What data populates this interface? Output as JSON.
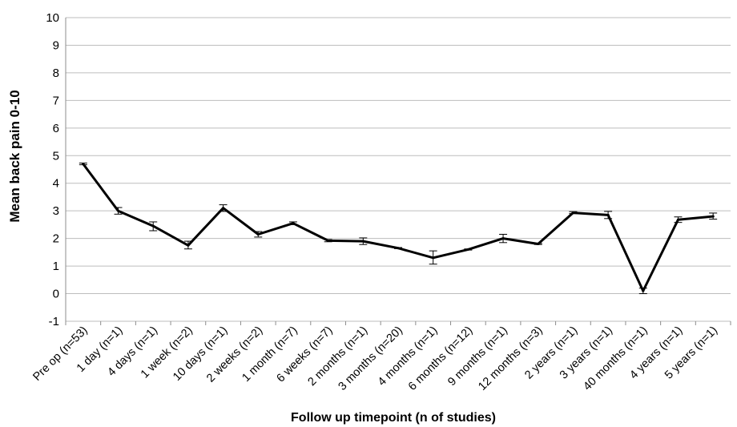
{
  "chart_data": {
    "type": "line",
    "title": "",
    "xlabel": "Follow up timepoint (n of studies)",
    "ylabel": "Mean back pain 0-10",
    "ylim": [
      -1,
      10
    ],
    "yticks": [
      "-1",
      "0",
      "1",
      "2",
      "3",
      "4",
      "5",
      "6",
      "7",
      "8",
      "9",
      "10"
    ],
    "grid": "horizontal",
    "legend": "none",
    "line_color": "#000000",
    "categories": [
      "Pre op  (n=53)",
      "1 day (n=1)",
      "4 days (n=1)",
      "1 week (n=2)",
      "10 days (n=1)",
      "2 weeks (n=2)",
      "1 month (n=7)",
      "6 weeks (n=7)",
      "2 months (n=1)",
      "3 months (n=20)",
      "4 months (n=1)",
      "6 months (n=12)",
      "9 months (n=1)",
      "12 months (n=3)",
      "2 years (n=1)",
      "3 years (n=1)",
      "40 months (n=1)",
      "4 years (n=1)",
      "5 years (n=1)"
    ],
    "series": [
      {
        "values": [
          4.7,
          3.0,
          2.45,
          1.75,
          3.1,
          2.15,
          2.55,
          1.92,
          1.9,
          1.65,
          1.3,
          1.6,
          2.0,
          1.8,
          2.93,
          2.85,
          0.1,
          2.68,
          2.8
        ],
        "error_low": [
          4.67,
          2.88,
          2.28,
          1.62,
          2.98,
          2.05,
          2.5,
          1.88,
          1.78,
          1.63,
          1.07,
          1.58,
          1.85,
          1.78,
          2.9,
          2.72,
          0.0,
          2.58,
          2.7
        ],
        "error_high": [
          4.73,
          3.12,
          2.6,
          1.9,
          3.22,
          2.25,
          2.6,
          1.96,
          2.02,
          1.67,
          1.55,
          1.62,
          2.15,
          1.82,
          2.97,
          2.98,
          0.2,
          2.78,
          2.92
        ]
      }
    ]
  }
}
